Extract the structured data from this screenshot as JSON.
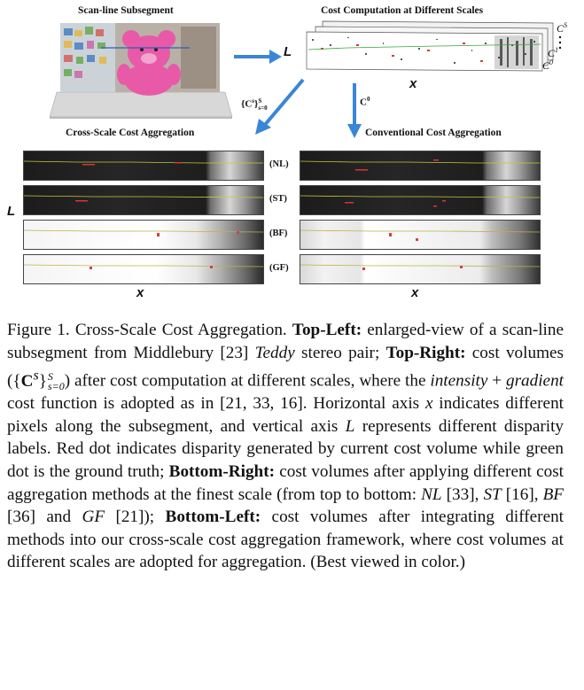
{
  "figure": {
    "top_left_title": "Scan-line Subsegment",
    "top_right_title": "Cost Computation at Different Scales",
    "label_L": "L",
    "label_x": "x",
    "scale_labels": [
      "C",
      "C",
      "C",
      "S",
      "1",
      "0"
    ],
    "arrow_label_cross": "{C",
    "arrow_label_cross_sup": "s",
    "arrow_label_cross_end": "}",
    "arrow_label_cross_sub": "s=0",
    "arrow_label_cross_supS": "S",
    "arrow_label_conv": "C",
    "arrow_label_conv_sup": "0",
    "bottom_left_title": "Cross-Scale Cost Aggregation",
    "bottom_right_title": "Conventional Cost Aggregation",
    "methods": [
      "(NL)",
      "(ST)",
      "(BF)",
      "(GF)"
    ]
  },
  "caption": {
    "p1": "Figure 1. Cross-Scale Cost Aggregation. ",
    "b1": "Top-Left:",
    "p2": " enlarged-view of a scan-line subsegment from Middlebury [23] ",
    "i1": "Teddy",
    "p3": " stereo pair; ",
    "b2": "Top-Right:",
    "p4": " cost volumes (",
    "p5": ") after cost computation at different scales, where the ",
    "i2": "intensity",
    "p6": " + ",
    "i3": "gradient",
    "p7": " cost function is adopted as in [21, 33, 16]. Horizontal axis ",
    "i4": "x",
    "p8": " indicates different pixels along the subsegment, and vertical axis ",
    "i5": "L",
    "p9": " represents different disparity labels. Red dot indicates disparity generated by current cost volume while green dot is the ground truth; ",
    "b3": "Bottom-Right:",
    "p10": " cost volumes after applying different cost aggregation methods at the finest scale (from top to bottom: ",
    "i6": "NL",
    "p11": " [33], ",
    "i7": "ST",
    "p12": " [16], ",
    "i8": "BF",
    "p13": " [36] and ",
    "i9": "GF",
    "p14": " [21]); ",
    "b4": "Bottom-Left:",
    "p15": " cost volumes after integrating different methods into our cross-scale cost aggregation framework, where cost volumes at different scales are adopted for aggregation. (Best viewed in color.)",
    "math_C": "C",
    "math_s": "s",
    "math_S": "S",
    "math_sub": "s=0"
  }
}
